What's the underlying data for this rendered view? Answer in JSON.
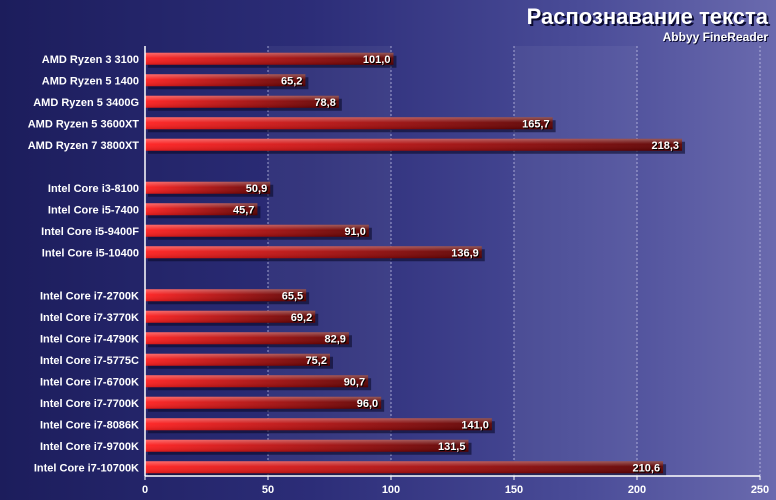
{
  "chart_data": {
    "type": "bar",
    "orientation": "horizontal",
    "title": "Распознавание текста",
    "subtitle": "Abbyy FineReader",
    "xlim": [
      0,
      250
    ],
    "xticks": [
      0,
      50,
      100,
      150,
      200,
      250
    ],
    "grid": true,
    "groups": [
      {
        "categories": [
          "AMD Ryzen 3 3100",
          "AMD Ryzen 5 1400",
          "AMD Ryzen 5 3400G",
          "AMD Ryzen 5 3600XT",
          "AMD Ryzen 7 3800XT"
        ],
        "values": [
          101.0,
          65.2,
          78.8,
          165.7,
          218.3
        ],
        "value_labels": [
          "101,0",
          "65,2",
          "78,8",
          "165,7",
          "218,3"
        ]
      },
      {
        "categories": [
          "Intel Core i3-8100",
          "Intel Core i5-7400",
          "Intel Core i5-9400F",
          "Intel Core i5-10400"
        ],
        "values": [
          50.9,
          45.7,
          91.0,
          136.9
        ],
        "value_labels": [
          "50,9",
          "45,7",
          "91,0",
          "136,9"
        ]
      },
      {
        "categories": [
          "Intel Core i7-2700K",
          "Intel Core i7-3770K",
          "Intel Core i7-4790K",
          "Intel Core i7-5775C",
          "Intel Core i7-6700K",
          "Intel Core i7-7700K",
          "Intel Core i7-8086K",
          "Intel Core i7-9700K",
          "Intel Core i7-10700K"
        ],
        "values": [
          65.5,
          69.2,
          82.9,
          75.2,
          90.7,
          96.0,
          141.0,
          131.5,
          210.6
        ],
        "value_labels": [
          "65,5",
          "69,2",
          "82,9",
          "75,2",
          "90,7",
          "96,0",
          "141,0",
          "131,5",
          "210,6"
        ]
      }
    ]
  },
  "colors": {
    "bar_start": "#ff1e1e",
    "bar_end": "#5a0000",
    "bar_top": "#ff9a9a",
    "axis": "#ffffff",
    "grid": "#d0d0f0",
    "shadow": "#0a0a2a"
  }
}
